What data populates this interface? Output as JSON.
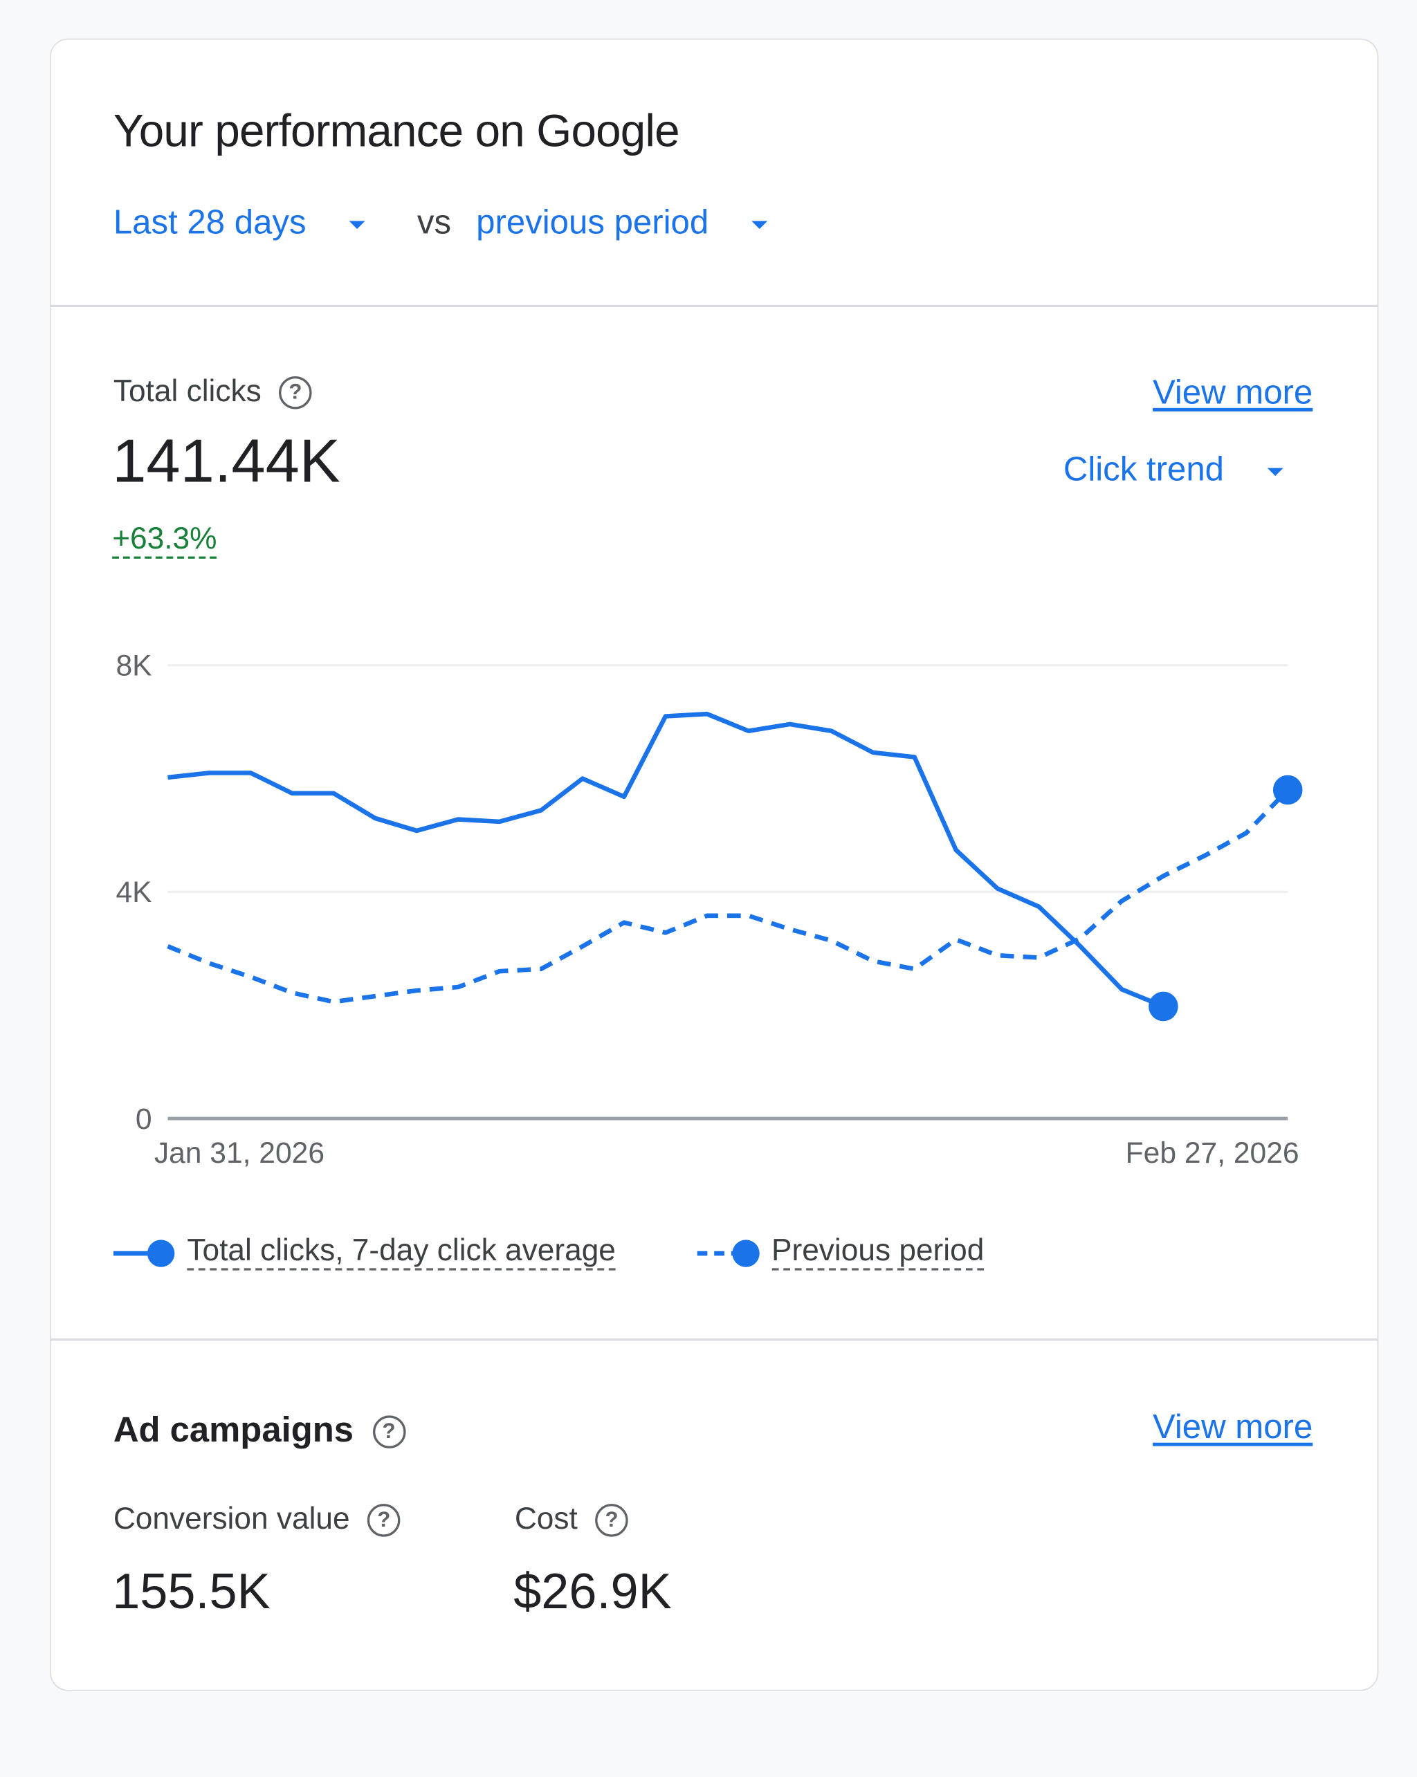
{
  "header": {
    "title": "Your performance on Google",
    "date_range": "Last 28 days",
    "vs_label": "vs",
    "comparison": "previous period"
  },
  "clicks": {
    "label": "Total clicks",
    "value": "141.44K",
    "change": "+63.3%",
    "view_more": "View more",
    "trend_select": "Click trend"
  },
  "ads": {
    "label": "Ad campaigns",
    "view_more": "View more",
    "metrics": [
      {
        "label": "Conversion value",
        "value": "155.5K"
      },
      {
        "label": "Cost",
        "value": "$26.9K"
      }
    ]
  },
  "colors": {
    "accent": "#1a73e8",
    "positive": "#188038",
    "text": "#202124"
  },
  "chart_data": {
    "type": "line",
    "x_tick_labels": [
      "Jan 31, 2026",
      "Feb 27, 2026"
    ],
    "x_range": [
      "Jan 31, 2026",
      "Feb 27, 2026"
    ],
    "y_ticks": [
      {
        "value": 0,
        "label": "0"
      },
      {
        "value": 4000,
        "label": "4K"
      },
      {
        "value": 8000,
        "label": "8K"
      }
    ],
    "ylim": [
      0,
      8000
    ],
    "grid": true,
    "legend_position": "bottom",
    "series": [
      {
        "name": "Total clicks, 7-day click average",
        "style": "solid",
        "color": "#1a73e8",
        "values": [
          6020,
          6100,
          6100,
          5740,
          5740,
          5300,
          5080,
          5280,
          5240,
          5440,
          6000,
          5680,
          7100,
          7140,
          6840,
          6960,
          6840,
          6460,
          6380,
          4740,
          4060,
          3740,
          3040,
          2280,
          1980
        ]
      },
      {
        "name": "Previous period",
        "style": "dashed",
        "color": "#1a73e8",
        "values": [
          3040,
          2740,
          2500,
          2220,
          2060,
          2160,
          2260,
          2320,
          2600,
          2640,
          3040,
          3460,
          3280,
          3580,
          3580,
          3340,
          3140,
          2780,
          2640,
          3160,
          2880,
          2840,
          3180,
          3840,
          4280,
          4640,
          5040,
          5800
        ]
      }
    ]
  }
}
